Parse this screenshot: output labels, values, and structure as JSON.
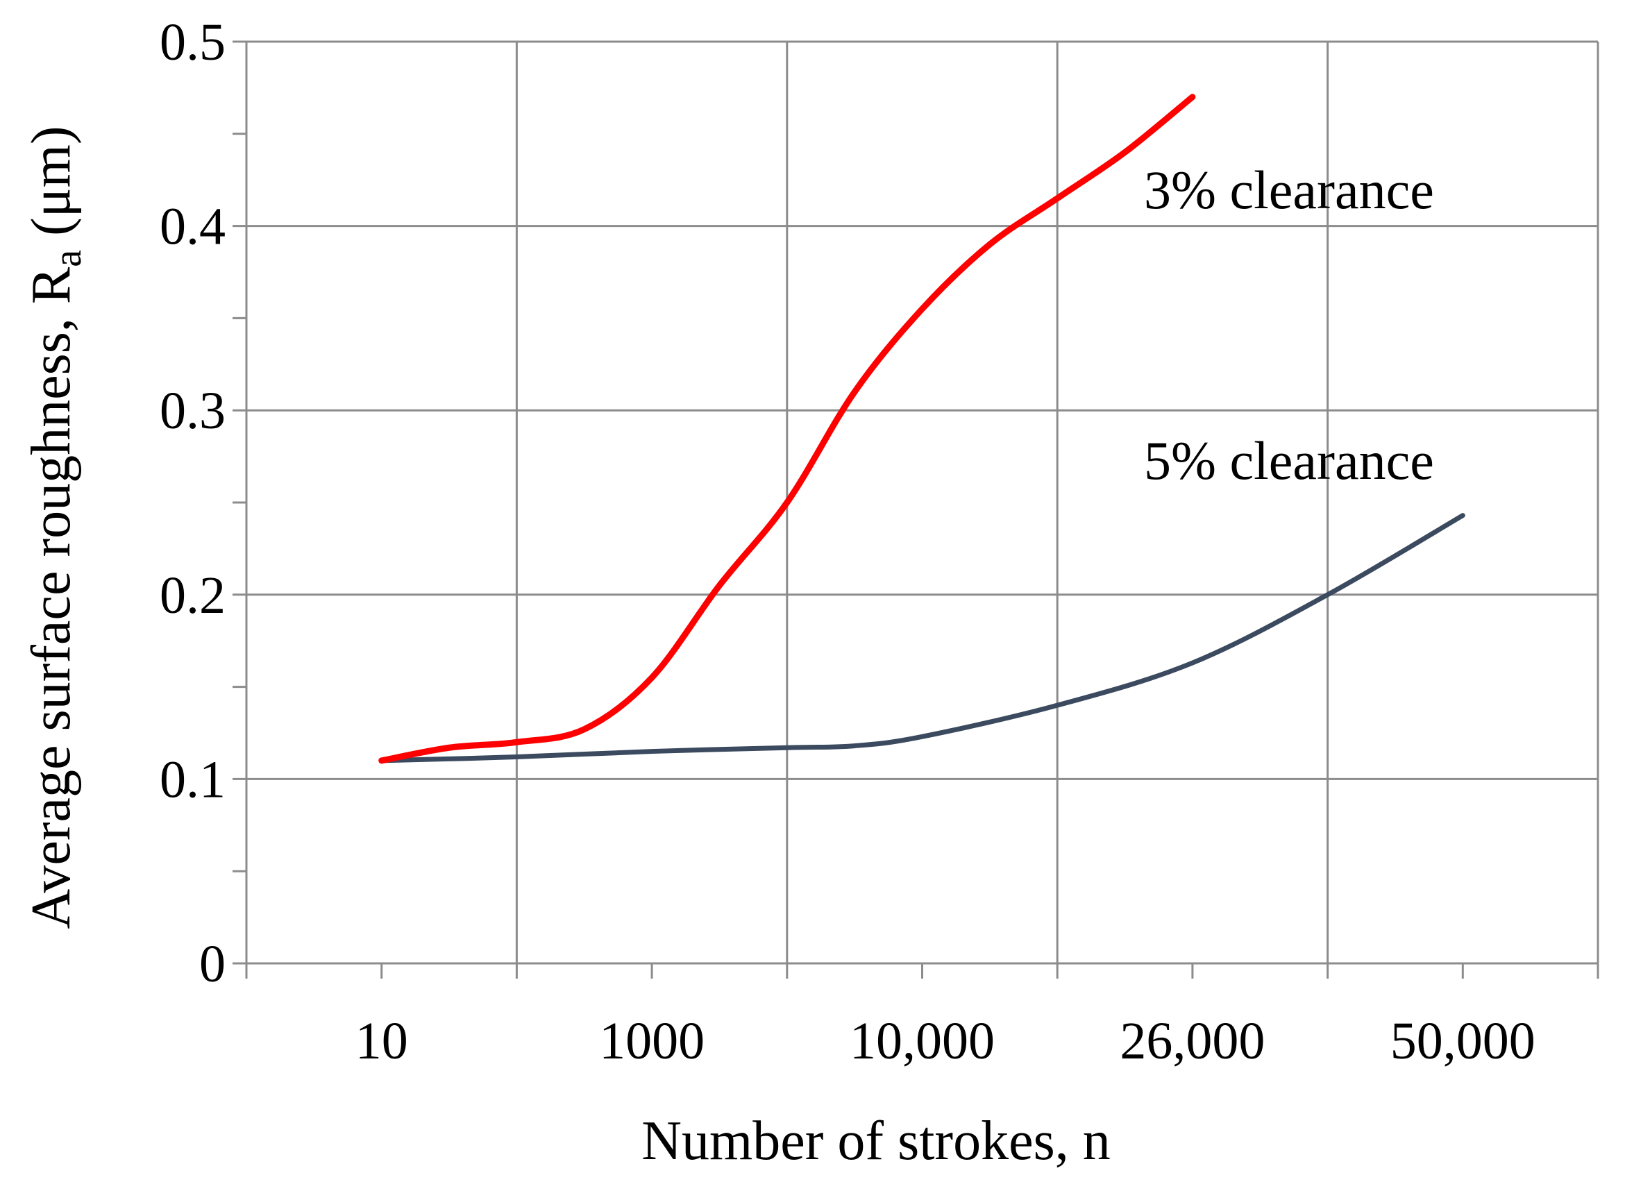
{
  "chart_data": {
    "type": "line",
    "xlabel": "Number of strokes, n",
    "ylabel_prefix": "Average surface roughness, R",
    "ylabel_subscript": "a",
    "ylabel_suffix": " (μm)",
    "ylim": [
      0,
      0.5
    ],
    "y_ticks": [
      "0",
      "0.1",
      "0.2",
      "0.3",
      "0.4",
      "0.5"
    ],
    "x_tick_labels": [
      "10",
      "1000",
      "10,000",
      "26,000",
      "50,000"
    ],
    "x_tick_label_positions": [
      1,
      3,
      5,
      7,
      9
    ],
    "x_category_count": 10,
    "grid": true,
    "series": [
      {
        "name": "3% clearance",
        "color": "#ff0000",
        "points": [
          [
            1,
            0.11
          ],
          [
            1.5,
            0.117
          ],
          [
            2,
            0.12
          ],
          [
            2.5,
            0.127
          ],
          [
            3,
            0.155
          ],
          [
            3.5,
            0.205
          ],
          [
            4,
            0.25
          ],
          [
            4.5,
            0.31
          ],
          [
            5,
            0.355
          ],
          [
            5.5,
            0.39
          ],
          [
            6,
            0.415
          ],
          [
            6.5,
            0.44
          ],
          [
            7,
            0.47
          ]
        ]
      },
      {
        "name": "5% clearance",
        "color": "#3b4a5f",
        "points": [
          [
            1,
            0.11
          ],
          [
            2,
            0.112
          ],
          [
            3,
            0.115
          ],
          [
            4,
            0.117
          ],
          [
            4.5,
            0.118
          ],
          [
            5,
            0.123
          ],
          [
            6,
            0.14
          ],
          [
            7,
            0.163
          ],
          [
            8,
            0.2
          ],
          [
            9,
            0.243
          ]
        ]
      }
    ]
  }
}
